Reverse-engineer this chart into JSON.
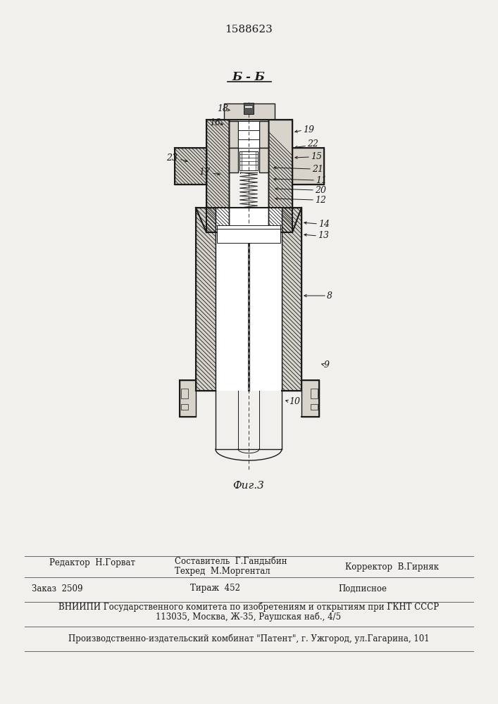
{
  "patent_number": "1588623",
  "section_label": "Б - Б",
  "figure_label": "Фиг.3",
  "bg_color": "#f2f0ec",
  "line_color": "#1a1a1a",
  "bottom_text": {
    "editor": "Редактор  Н.Горват",
    "compiler": "Составитель  Г.Гандыбин",
    "techred": "Техред  М.Моргентал",
    "corrector": "Корректор  В.Гирняк",
    "order": "Заказ  2509",
    "tirage": "Тираж  452",
    "podpisnoe": "Подписное",
    "vniipи": "ВНИИПИ Государственного комитета по изобретениям и открытиям при ГКНТ СССР",
    "address": "113035, Москва, Ж-35, Раушская наб., 4/5",
    "factory": "Производственно-издательский комбинат \"Патент\", г. Ужгород, ул.Гагарина, 101"
  }
}
